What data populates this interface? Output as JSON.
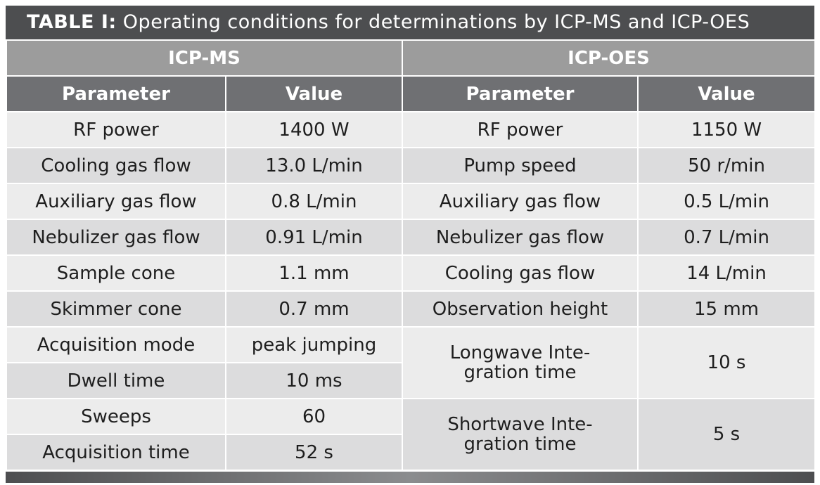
{
  "title": {
    "bold": "TABLE I:",
    "text": "Operating conditions for determinations by ICP-MS and ICP-OES"
  },
  "groups": {
    "left": "ICP-MS",
    "right": "ICP-OES"
  },
  "headers": {
    "param": "Parameter",
    "value": "Value"
  },
  "rows": [
    {
      "ms_param": "RF power",
      "ms_value": "1400 W",
      "oes_param": "RF power",
      "oes_value": "1150 W"
    },
    {
      "ms_param": "Cooling gas flow",
      "ms_value": "13.0 L/min",
      "oes_param": "Pump speed",
      "oes_value": "50 r/min"
    },
    {
      "ms_param": "Auxiliary gas flow",
      "ms_value": "0.8 L/min",
      "oes_param": "Auxiliary gas flow",
      "oes_value": "0.5 L/min"
    },
    {
      "ms_param": "Nebulizer gas flow",
      "ms_value": "0.91 L/min",
      "oes_param": "Nebulizer gas flow",
      "oes_value": "0.7 L/min"
    },
    {
      "ms_param": "Sample cone",
      "ms_value": "1.1 mm",
      "oes_param": "Cooling gas flow",
      "oes_value": "14 L/min"
    },
    {
      "ms_param": "Skimmer cone",
      "ms_value": "0.7 mm",
      "oes_param": "Observation height",
      "oes_value": "15 mm"
    },
    {
      "ms_param": "Acquisition mode",
      "ms_value": "peak jumping"
    },
    {
      "ms_param": "Dwell time",
      "ms_value": "10 ms"
    },
    {
      "ms_param": "Sweeps",
      "ms_value": "60"
    },
    {
      "ms_param": "Acquisition time",
      "ms_value": "52 s"
    }
  ],
  "merged": [
    {
      "param_line1": "Longwave Inte-",
      "param_line2": "gration time",
      "value": "10 s"
    },
    {
      "param_line1": "Shortwave Inte-",
      "param_line2": "gration time",
      "value": "5 s"
    }
  ]
}
